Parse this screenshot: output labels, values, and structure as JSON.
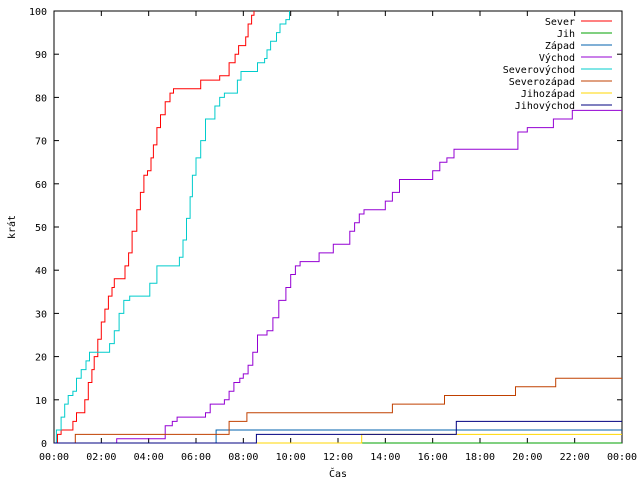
{
  "chart_data": {
    "type": "line",
    "step": true,
    "title": "",
    "xlabel": "Čas",
    "ylabel": "krát",
    "x_unit": "hours",
    "xlim": [
      0,
      24
    ],
    "ylim": [
      0,
      100
    ],
    "x_ticks": [
      {
        "v": 0,
        "label": "00:00"
      },
      {
        "v": 2,
        "label": "02:00"
      },
      {
        "v": 4,
        "label": "04:00"
      },
      {
        "v": 6,
        "label": "06:00"
      },
      {
        "v": 8,
        "label": "08:00"
      },
      {
        "v": 10,
        "label": "10:00"
      },
      {
        "v": 12,
        "label": "12:00"
      },
      {
        "v": 14,
        "label": "14:00"
      },
      {
        "v": 16,
        "label": "16:00"
      },
      {
        "v": 18,
        "label": "18:00"
      },
      {
        "v": 20,
        "label": "20:00"
      },
      {
        "v": 22,
        "label": "22:00"
      },
      {
        "v": 24,
        "label": "00:00"
      }
    ],
    "y_ticks": [
      {
        "v": 0,
        "label": "0"
      },
      {
        "v": 10,
        "label": "10"
      },
      {
        "v": 20,
        "label": "20"
      },
      {
        "v": 30,
        "label": "30"
      },
      {
        "v": 40,
        "label": "40"
      },
      {
        "v": 50,
        "label": "50"
      },
      {
        "v": 60,
        "label": "60"
      },
      {
        "v": 70,
        "label": "70"
      },
      {
        "v": 80,
        "label": "80"
      },
      {
        "v": 90,
        "label": "90"
      },
      {
        "v": 100,
        "label": "100"
      }
    ],
    "grid": false,
    "legend_position": "top-right",
    "series": [
      {
        "name": "Sever",
        "color": "#ff0000",
        "points": [
          [
            0,
            0
          ],
          [
            0.15,
            2
          ],
          [
            0.3,
            3
          ],
          [
            0.7,
            3
          ],
          [
            0.8,
            5
          ],
          [
            0.95,
            7
          ],
          [
            1.2,
            7
          ],
          [
            1.3,
            10
          ],
          [
            1.45,
            14
          ],
          [
            1.6,
            17
          ],
          [
            1.7,
            20
          ],
          [
            1.85,
            24
          ],
          [
            2.0,
            28
          ],
          [
            2.15,
            31
          ],
          [
            2.3,
            34
          ],
          [
            2.45,
            36
          ],
          [
            2.55,
            38
          ],
          [
            2.9,
            38
          ],
          [
            3.0,
            41
          ],
          [
            3.15,
            44
          ],
          [
            3.3,
            49
          ],
          [
            3.5,
            54
          ],
          [
            3.65,
            58
          ],
          [
            3.8,
            62
          ],
          [
            3.95,
            63
          ],
          [
            4.1,
            66
          ],
          [
            4.2,
            69
          ],
          [
            4.35,
            73
          ],
          [
            4.5,
            76
          ],
          [
            4.7,
            79
          ],
          [
            4.9,
            81
          ],
          [
            5.05,
            82
          ],
          [
            6.1,
            82
          ],
          [
            6.2,
            84
          ],
          [
            6.9,
            84
          ],
          [
            7.0,
            85
          ],
          [
            7.3,
            85
          ],
          [
            7.4,
            88
          ],
          [
            7.65,
            90
          ],
          [
            7.8,
            92
          ],
          [
            8.1,
            94
          ],
          [
            8.2,
            97
          ],
          [
            8.35,
            99
          ],
          [
            8.45,
            100
          ]
        ]
      },
      {
        "name": "Jih",
        "color": "#00a000",
        "points": [
          [
            0,
            0
          ],
          [
            24,
            0
          ]
        ]
      },
      {
        "name": "Západ",
        "color": "#0060ad",
        "points": [
          [
            0,
            0
          ],
          [
            6.8,
            0
          ],
          [
            6.85,
            3
          ],
          [
            24,
            3
          ]
        ]
      },
      {
        "name": "Východ",
        "color": "#9400d3",
        "points": [
          [
            0,
            0
          ],
          [
            2.6,
            0
          ],
          [
            2.65,
            1
          ],
          [
            4.6,
            1
          ],
          [
            4.7,
            4
          ],
          [
            5.0,
            5
          ],
          [
            5.2,
            6
          ],
          [
            6.2,
            6
          ],
          [
            6.4,
            7
          ],
          [
            6.6,
            9
          ],
          [
            7.0,
            9
          ],
          [
            7.2,
            10
          ],
          [
            7.4,
            12
          ],
          [
            7.6,
            14
          ],
          [
            7.85,
            15
          ],
          [
            8.0,
            16
          ],
          [
            8.2,
            18
          ],
          [
            8.4,
            21
          ],
          [
            8.6,
            25
          ],
          [
            9.0,
            26
          ],
          [
            9.25,
            29
          ],
          [
            9.5,
            33
          ],
          [
            9.8,
            36
          ],
          [
            10.0,
            39
          ],
          [
            10.2,
            41
          ],
          [
            10.4,
            42
          ],
          [
            11.0,
            42
          ],
          [
            11.2,
            44
          ],
          [
            11.6,
            44
          ],
          [
            11.8,
            46
          ],
          [
            12.2,
            46
          ],
          [
            12.5,
            49
          ],
          [
            12.7,
            51
          ],
          [
            12.9,
            53
          ],
          [
            13.1,
            54
          ],
          [
            13.9,
            54
          ],
          [
            14.0,
            56
          ],
          [
            14.3,
            58
          ],
          [
            14.6,
            61
          ],
          [
            15.8,
            61
          ],
          [
            16.0,
            63
          ],
          [
            16.3,
            65
          ],
          [
            16.6,
            66
          ],
          [
            16.9,
            68
          ],
          [
            19.4,
            68
          ],
          [
            19.6,
            72
          ],
          [
            20.0,
            73
          ],
          [
            21.0,
            73
          ],
          [
            21.1,
            75
          ],
          [
            21.8,
            75
          ],
          [
            21.9,
            77
          ],
          [
            24,
            77
          ]
        ]
      },
      {
        "name": "Severovýchod",
        "color": "#00cccc",
        "points": [
          [
            0,
            0
          ],
          [
            0.1,
            3
          ],
          [
            0.3,
            6
          ],
          [
            0.45,
            9
          ],
          [
            0.6,
            11
          ],
          [
            0.8,
            12
          ],
          [
            0.95,
            15
          ],
          [
            1.15,
            17
          ],
          [
            1.35,
            19
          ],
          [
            1.5,
            21
          ],
          [
            2.1,
            21
          ],
          [
            2.35,
            23
          ],
          [
            2.55,
            26
          ],
          [
            2.75,
            30
          ],
          [
            2.95,
            33
          ],
          [
            3.2,
            34
          ],
          [
            3.9,
            34
          ],
          [
            4.05,
            37
          ],
          [
            4.35,
            41
          ],
          [
            5.15,
            41
          ],
          [
            5.3,
            43
          ],
          [
            5.45,
            47
          ],
          [
            5.6,
            52
          ],
          [
            5.75,
            57
          ],
          [
            5.85,
            62
          ],
          [
            6.0,
            66
          ],
          [
            6.2,
            70
          ],
          [
            6.4,
            75
          ],
          [
            6.7,
            75
          ],
          [
            6.8,
            78
          ],
          [
            7.0,
            80
          ],
          [
            7.2,
            81
          ],
          [
            7.6,
            81
          ],
          [
            7.75,
            84
          ],
          [
            7.9,
            86
          ],
          [
            8.4,
            86
          ],
          [
            8.6,
            88
          ],
          [
            8.9,
            89
          ],
          [
            9.0,
            91
          ],
          [
            9.15,
            93
          ],
          [
            9.4,
            95
          ],
          [
            9.55,
            97
          ],
          [
            9.8,
            98
          ],
          [
            9.95,
            100
          ]
        ]
      },
      {
        "name": "Severozápad",
        "color": "#c04000",
        "points": [
          [
            0,
            0
          ],
          [
            0.85,
            0
          ],
          [
            0.9,
            2
          ],
          [
            7.3,
            2
          ],
          [
            7.4,
            5
          ],
          [
            8.1,
            5
          ],
          [
            8.15,
            7
          ],
          [
            14.2,
            7
          ],
          [
            14.3,
            9
          ],
          [
            16.4,
            9
          ],
          [
            16.5,
            11
          ],
          [
            19.4,
            11
          ],
          [
            19.5,
            13
          ],
          [
            21.1,
            13
          ],
          [
            21.2,
            15
          ],
          [
            24,
            15
          ]
        ]
      },
      {
        "name": "Jihozápad",
        "color": "#ffd700",
        "points": [
          [
            0,
            0
          ],
          [
            12.95,
            0
          ],
          [
            13.0,
            2
          ],
          [
            24,
            2
          ]
        ]
      },
      {
        "name": "Jihovýchod",
        "color": "#000080",
        "points": [
          [
            0,
            0
          ],
          [
            8.5,
            0
          ],
          [
            8.55,
            2
          ],
          [
            16.9,
            2
          ],
          [
            17.0,
            5
          ],
          [
            24,
            5
          ]
        ]
      }
    ]
  }
}
